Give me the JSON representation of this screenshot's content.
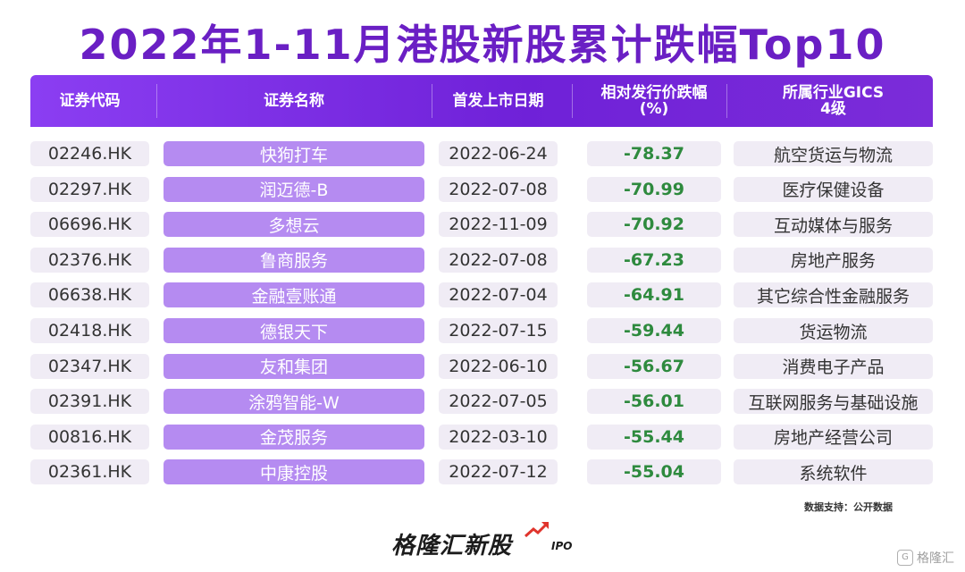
{
  "title": "2022年1-11月港股新股累计跌幅Top10",
  "columns": [
    {
      "label": "证券代码"
    },
    {
      "label": "证券名称"
    },
    {
      "label": "首发上市日期"
    },
    {
      "label": "相对发行价跌幅",
      "label2": "(%)"
    },
    {
      "label": "所属行业GICS",
      "label2": "4级"
    }
  ],
  "chart_data": {
    "type": "table",
    "title": "2022年1-11月港股新股累计跌幅Top10",
    "headers": [
      "证券代码",
      "证券名称",
      "首发上市日期",
      "相对发行价跌幅(%)",
      "所属行业GICS 4级"
    ],
    "rows": [
      {
        "code": "02246.HK",
        "name": "快狗打车",
        "date": "2022-06-24",
        "drop": "-78.37",
        "industry": "航空货运与物流"
      },
      {
        "code": "02297.HK",
        "name": "润迈德-B",
        "date": "2022-07-08",
        "drop": "-70.99",
        "industry": "医疗保健设备"
      },
      {
        "code": "06696.HK",
        "name": "多想云",
        "date": "2022-11-09",
        "drop": "-70.92",
        "industry": "互动媒体与服务"
      },
      {
        "code": "02376.HK",
        "name": "鲁商服务",
        "date": "2022-07-08",
        "drop": "-67.23",
        "industry": "房地产服务"
      },
      {
        "code": "06638.HK",
        "name": "金融壹账通",
        "date": "2022-07-04",
        "drop": "-64.91",
        "industry": "其它综合性金融服务"
      },
      {
        "code": "02418.HK",
        "name": "德银天下",
        "date": "2022-07-15",
        "drop": "-59.44",
        "industry": "货运物流"
      },
      {
        "code": "02347.HK",
        "name": "友和集团",
        "date": "2022-06-10",
        "drop": "-56.67",
        "industry": "消费电子产品"
      },
      {
        "code": "02391.HK",
        "name": "涂鸦智能-W",
        "date": "2022-07-05",
        "drop": "-56.01",
        "industry": "互联网服务与基础设施"
      },
      {
        "code": "00816.HK",
        "name": "金茂服务",
        "date": "2022-03-10",
        "drop": "-55.44",
        "industry": "房地产经营公司"
      },
      {
        "code": "02361.HK",
        "name": "中康控股",
        "date": "2022-07-12",
        "drop": "-55.04",
        "industry": "系统软件"
      }
    ]
  },
  "source": "数据支持：公开数据",
  "brand": {
    "name": "格隆汇新股",
    "suffix": "IPO"
  },
  "watermark": "格隆汇",
  "colors": {
    "title": "#6a1fc4",
    "header": "#7b2cd9",
    "name_cell": "#b58bf1",
    "cell": "#f0ecf5",
    "drop_text": "#2e8a3e"
  }
}
